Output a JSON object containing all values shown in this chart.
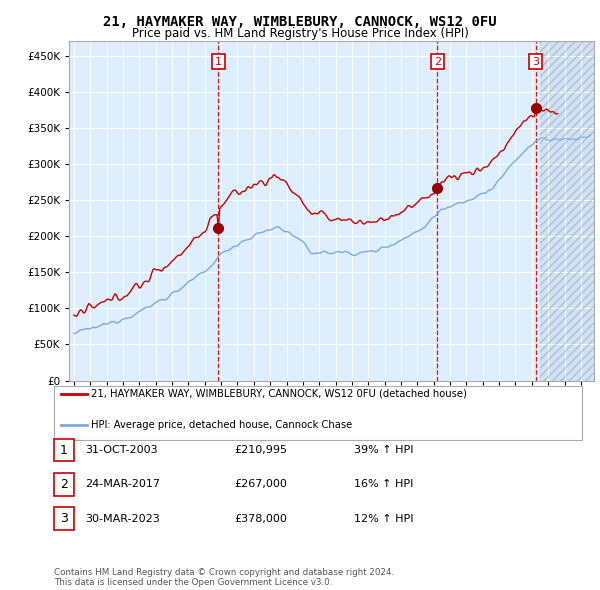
{
  "title": "21, HAYMAKER WAY, WIMBLEBURY, CANNOCK, WS12 0FU",
  "subtitle": "Price paid vs. HM Land Registry's House Price Index (HPI)",
  "ytick_values": [
    0,
    50000,
    100000,
    150000,
    200000,
    250000,
    300000,
    350000,
    400000,
    450000
  ],
  "ylim": [
    0,
    470000
  ],
  "xlim_start": 1994.7,
  "xlim_end": 2026.8,
  "sale1_date": 2003.83,
  "sale1_price": 210995,
  "sale1_label": "1",
  "sale2_date": 2017.22,
  "sale2_price": 267000,
  "sale2_label": "2",
  "sale3_date": 2023.24,
  "sale3_price": 378000,
  "sale3_label": "3",
  "legend_line1": "21, HAYMAKER WAY, WIMBLEBURY, CANNOCK, WS12 0FU (detached house)",
  "legend_line2": "HPI: Average price, detached house, Cannock Chase",
  "table_rows": [
    [
      "1",
      "31-OCT-2003",
      "£210,995",
      "39% ↑ HPI"
    ],
    [
      "2",
      "24-MAR-2017",
      "£267,000",
      "16% ↑ HPI"
    ],
    [
      "3",
      "30-MAR-2023",
      "£378,000",
      "12% ↑ HPI"
    ]
  ],
  "footer": "Contains HM Land Registry data © Crown copyright and database right 2024.\nThis data is licensed under the Open Government Licence v3.0.",
  "line_color_red": "#cc0000",
  "line_color_blue": "#7aaadd",
  "bg_color": "#ddeeff",
  "title_fontsize": 10,
  "subtitle_fontsize": 8.5
}
